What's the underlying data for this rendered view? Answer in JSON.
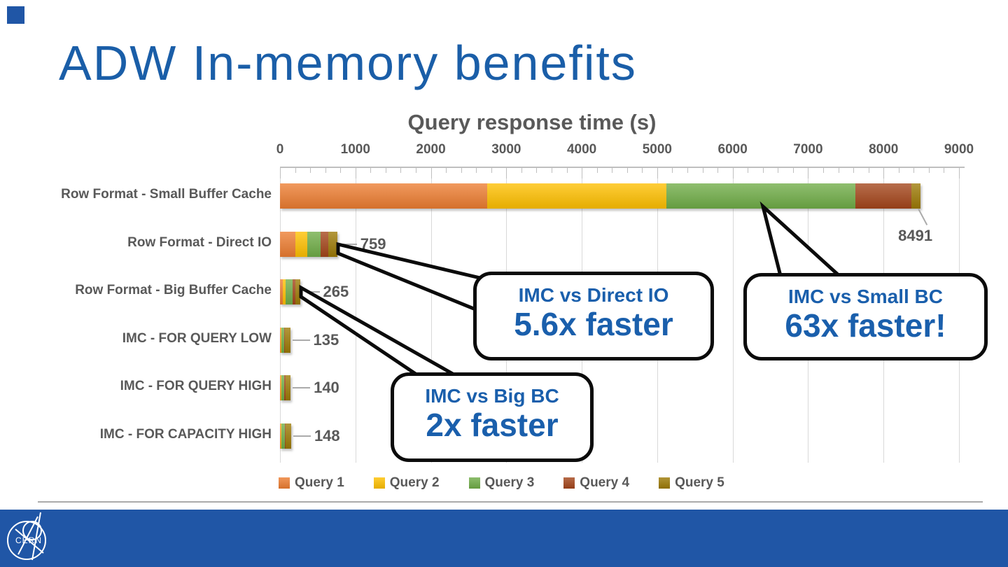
{
  "slide": {
    "title": "ADW In-memory benefits"
  },
  "footer": {
    "logo_text": "CERN"
  },
  "chart_data": {
    "type": "bar",
    "orientation": "horizontal",
    "stacked": true,
    "title": "Query response time (s)",
    "xlim": [
      0,
      9000
    ],
    "x_ticks": [
      0,
      1000,
      2000,
      3000,
      4000,
      5000,
      6000,
      7000,
      8000,
      9000
    ],
    "minor_tick_step": 200,
    "grid": true,
    "legend_position": "bottom",
    "categories": [
      "Row Format - Small Buffer Cache",
      "Row Format - Direct IO",
      "Row Format - Big Buffer Cache",
      "IMC - FOR QUERY LOW",
      "IMC - FOR QUERY HIGH",
      "IMC - FOR CAPACITY HIGH"
    ],
    "series": [
      {
        "name": "Query 1",
        "color": "#ED7D31",
        "values": [
          2750,
          205,
          37,
          5,
          5,
          5
        ]
      },
      {
        "name": "Query 2",
        "color": "#FFC000",
        "values": [
          2375,
          160,
          40,
          15,
          15,
          15
        ]
      },
      {
        "name": "Query 3",
        "color": "#70AD47",
        "values": [
          2500,
          175,
          93,
          35,
          40,
          45
        ]
      },
      {
        "name": "Query 4",
        "color": "#A4451A",
        "values": [
          740,
          99,
          32,
          10,
          10,
          13
        ]
      },
      {
        "name": "Query 5",
        "color": "#9D7A05",
        "values": [
          126,
          120,
          63,
          70,
          70,
          70
        ]
      }
    ],
    "totals": [
      8491,
      759,
      265,
      135,
      140,
      148
    ],
    "total_labels": [
      "8491",
      "759",
      "265",
      "135",
      "140",
      "148"
    ]
  },
  "callouts": [
    {
      "heading": "IMC vs Direct IO",
      "value": "5.6x faster"
    },
    {
      "heading": "IMC vs Small BC",
      "value": "63x faster!"
    },
    {
      "heading": "IMC vs Big BC",
      "value": "2x faster"
    }
  ],
  "colors": {
    "title_blue": "#1A5EA8",
    "callout_blue": "#1A5FAC",
    "chart_text_gray": "#595959",
    "footer_blue": "#2056A6",
    "gridline": "#D9D9D9"
  }
}
